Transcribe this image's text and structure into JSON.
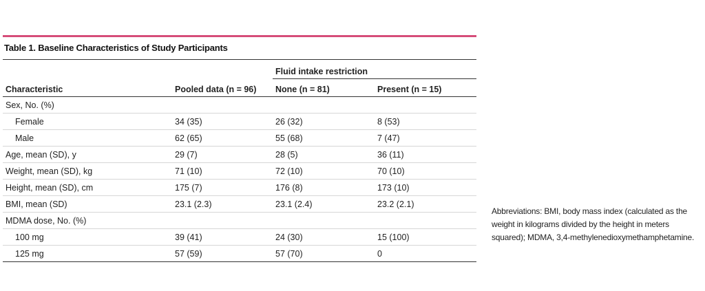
{
  "table": {
    "caption": "Table 1. Baseline Characteristics of Study Participants",
    "group_header": "Fluid intake restriction",
    "columns": [
      "Characteristic",
      "Pooled data (n = 96)",
      "None (n = 81)",
      "Present (n = 15)"
    ],
    "rows": [
      {
        "label": "Sex, No. (%)",
        "pooled": "",
        "none": "",
        "present": ""
      },
      {
        "label": "Female",
        "pooled": "34 (35)",
        "none": "26 (32)",
        "present": "8 (53)"
      },
      {
        "label": "Male",
        "pooled": "62 (65)",
        "none": "55 (68)",
        "present": "7 (47)"
      },
      {
        "label": "Age, mean (SD), y",
        "pooled": "29 (7)",
        "none": "28 (5)",
        "present": "36 (11)"
      },
      {
        "label": "Weight, mean (SD), kg",
        "pooled": "71 (10)",
        "none": "72 (10)",
        "present": "70 (10)"
      },
      {
        "label": "Height, mean (SD), cm",
        "pooled": "175 (7)",
        "none": "176 (8)",
        "present": "173 (10)"
      },
      {
        "label": "BMI, mean (SD)",
        "pooled": "23.1 (2.3)",
        "none": "23.1 (2.4)",
        "present": "23.2 (2.1)"
      },
      {
        "label": "MDMA dose, No. (%)",
        "pooled": "",
        "none": "",
        "present": ""
      },
      {
        "label": "100 mg",
        "pooled": "39 (41)",
        "none": "24 (30)",
        "present": "15 (100)"
      },
      {
        "label": "125 mg",
        "pooled": "57 (59)",
        "none": "57 (70)",
        "present": "0"
      }
    ]
  },
  "footnote": "Abbreviations: BMI, body mass index (calculated as the weight in kilograms divided by the height in meters squared); MDMA, 3,4-methylenedioxymethamphetamine.",
  "colors": {
    "accent_rule": "#d64d79"
  }
}
